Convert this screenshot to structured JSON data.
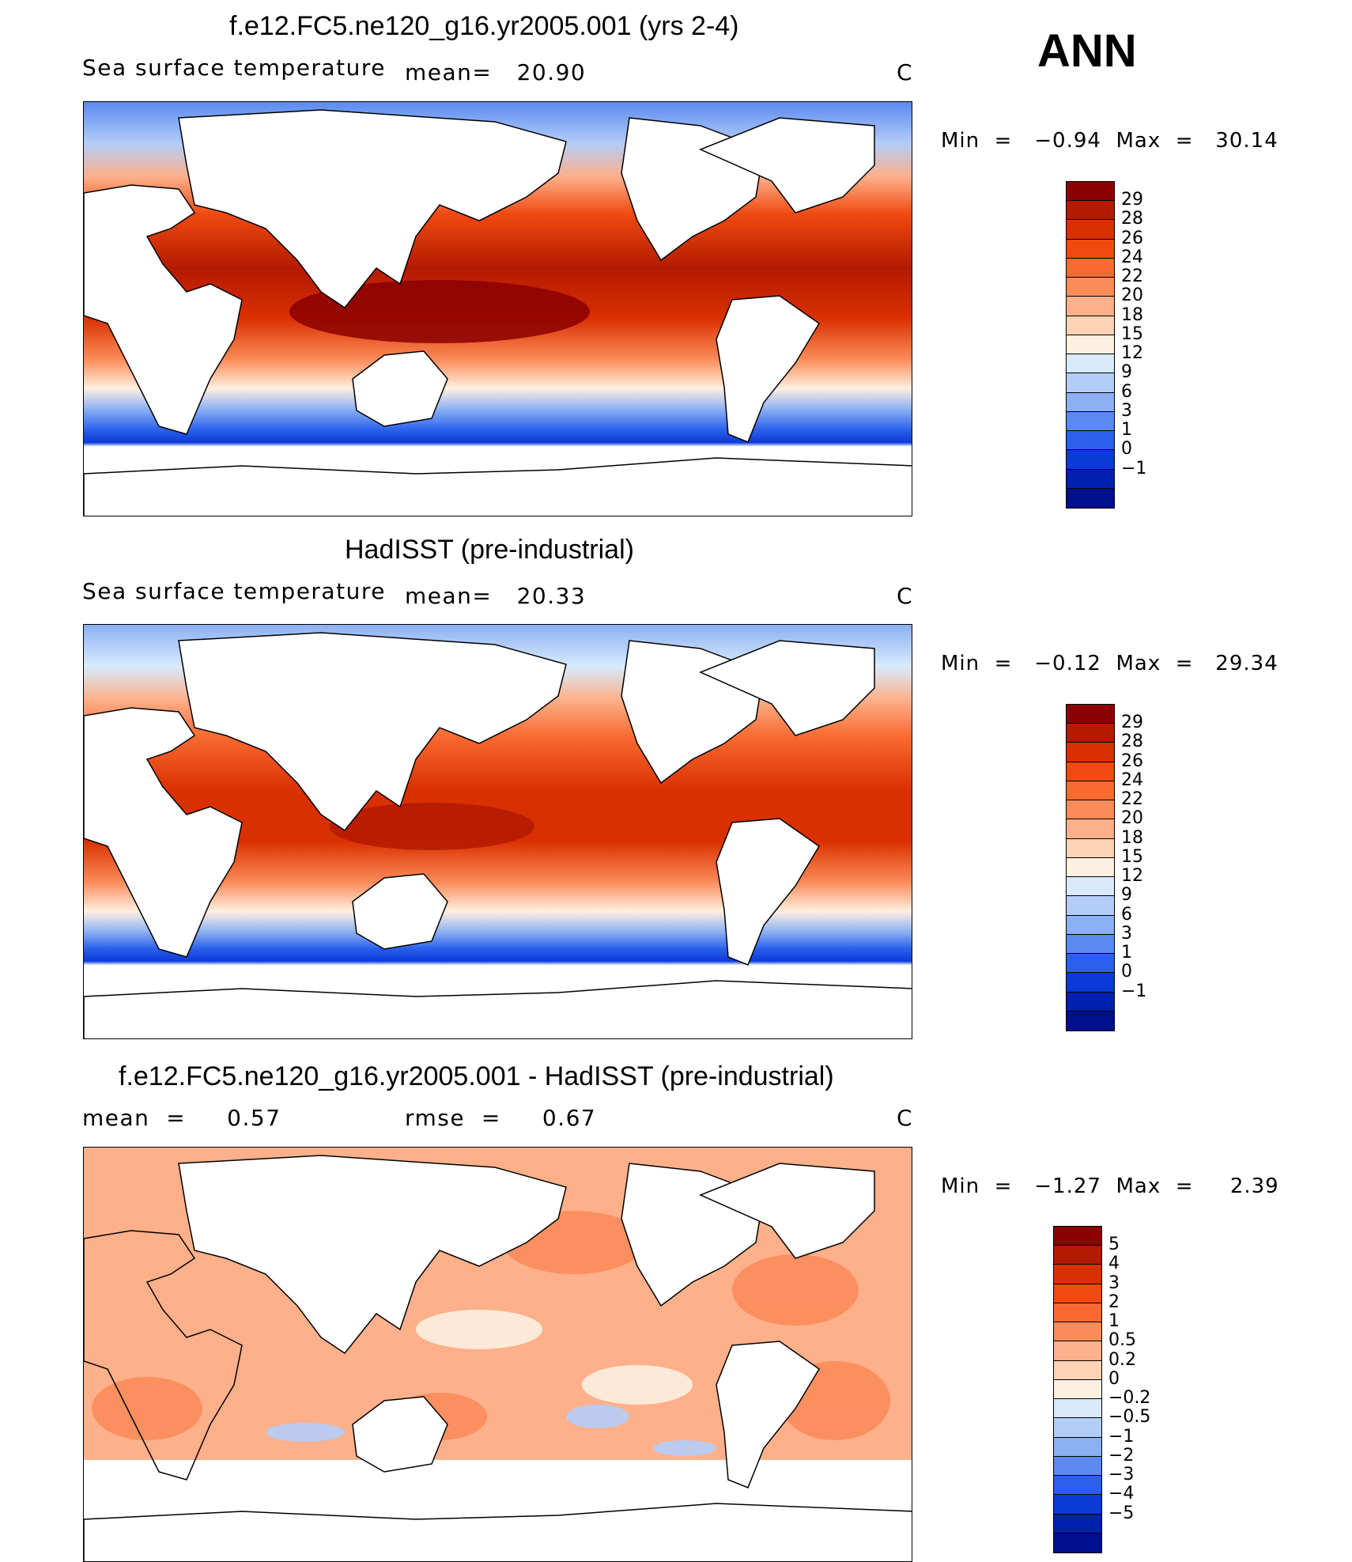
{
  "season": "ANN",
  "panels": [
    {
      "title": "f.e12.FC5.ne120_g16.yr2005.001 (yrs 2-4)",
      "left_label": "Sea surface temperature",
      "stat1": "mean=   20.90",
      "stat2": "",
      "units": "C",
      "minmax": "Min  =   −0.94  Max  =   30.14",
      "colorbar": {
        "labels": [
          "29",
          "28",
          "26",
          "24",
          "22",
          "20",
          "18",
          "15",
          "12",
          "9",
          "6",
          "3",
          "1",
          "0",
          "−1"
        ],
        "colors": [
          "#8b0000",
          "#b31a00",
          "#d93000",
          "#f04a10",
          "#f86a30",
          "#fb8c5a",
          "#fdb08a",
          "#fed2b4",
          "#fef0e0",
          "#d8eafc",
          "#b4cdf8",
          "#8cb0f4",
          "#5a8af0",
          "#2a60ec",
          "#0a3ad8",
          "#0020b0",
          "#00108c"
        ]
      }
    },
    {
      "title": "HadISST (pre-industrial)",
      "left_label": "Sea surface temperature",
      "stat1": "mean=   20.33",
      "stat2": "",
      "units": "C",
      "minmax": "Min  =   −0.12  Max  =   29.34",
      "colorbar": {
        "labels": [
          "29",
          "28",
          "26",
          "24",
          "22",
          "20",
          "18",
          "15",
          "12",
          "9",
          "6",
          "3",
          "1",
          "0",
          "−1"
        ],
        "colors": [
          "#8b0000",
          "#b31a00",
          "#d93000",
          "#f04a10",
          "#f86a30",
          "#fb8c5a",
          "#fdb08a",
          "#fed2b4",
          "#fef0e0",
          "#d8eafc",
          "#b4cdf8",
          "#8cb0f4",
          "#5a8af0",
          "#2a60ec",
          "#0a3ad8",
          "#0020b0",
          "#00108c"
        ]
      }
    },
    {
      "title": "f.e12.FC5.ne120_g16.yr2005.001 - HadISST (pre-industrial)",
      "left_label": "mean  =     0.57",
      "stat1": "rmse  =     0.67",
      "stat2": "",
      "units": "C",
      "minmax": "Min  =   −1.27  Max  =     2.39",
      "colorbar": {
        "labels": [
          "5",
          "4",
          "3",
          "2",
          "1",
          "0.5",
          "0.2",
          "0",
          "−0.2",
          "−0.5",
          "−1",
          "−2",
          "−3",
          "−4",
          "−5"
        ],
        "colors": [
          "#8b0000",
          "#b31a00",
          "#d93000",
          "#f04a10",
          "#f86a30",
          "#fb8c5a",
          "#fdb08a",
          "#fed2b4",
          "#fef0e0",
          "#d8eafc",
          "#b4cdf8",
          "#8cb0f4",
          "#5a8af0",
          "#2a60ec",
          "#0a3ad8",
          "#0020b0",
          "#00108c"
        ]
      }
    }
  ]
}
